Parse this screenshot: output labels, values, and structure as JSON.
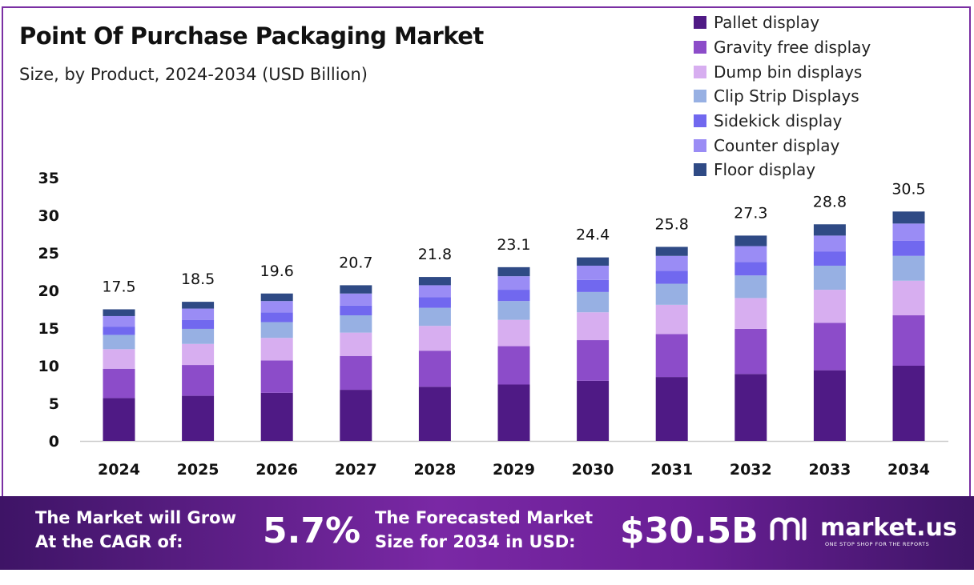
{
  "header": {
    "title": "Point Of Purchase Packaging Market",
    "subtitle": "Size, by Product, 2024-2034 (USD Billion)"
  },
  "chart_data": {
    "type": "bar",
    "stacked": true,
    "title": "Point Of Purchase Packaging Market",
    "subtitle": "Size, by Product, 2024-2034 (USD Billion)",
    "xlabel": "",
    "ylabel": "",
    "ylim": [
      0,
      35
    ],
    "yticks": [
      0,
      5,
      10,
      15,
      20,
      25,
      30,
      35
    ],
    "categories": [
      "2024",
      "2025",
      "2026",
      "2027",
      "2028",
      "2029",
      "2030",
      "2031",
      "2032",
      "2033",
      "2034"
    ],
    "totals": [
      "17.5",
      "18.5",
      "19.6",
      "20.7",
      "21.8",
      "23.1",
      "24.4",
      "25.8",
      "27.3",
      "28.8",
      "30.5"
    ],
    "legend_position": "top-right",
    "series": [
      {
        "name": "Pallet display",
        "color": "#4f1a85",
        "values": [
          5.7,
          6.0,
          6.4,
          6.8,
          7.2,
          7.5,
          8.0,
          8.5,
          8.9,
          9.4,
          10.0
        ]
      },
      {
        "name": "Gravity free display",
        "color": "#8c4cc9",
        "values": [
          3.9,
          4.1,
          4.3,
          4.5,
          4.8,
          5.1,
          5.4,
          5.7,
          6.0,
          6.3,
          6.7
        ]
      },
      {
        "name": "Dump bin displays",
        "color": "#d7aef0",
        "values": [
          2.6,
          2.8,
          3.0,
          3.1,
          3.3,
          3.5,
          3.7,
          3.9,
          4.1,
          4.4,
          4.6
        ]
      },
      {
        "name": "Clip Strip Displays",
        "color": "#97b0e3",
        "values": [
          1.9,
          2.0,
          2.1,
          2.3,
          2.4,
          2.5,
          2.7,
          2.8,
          3.0,
          3.2,
          3.3
        ]
      },
      {
        "name": "Sidekick display",
        "color": "#7168ef",
        "values": [
          1.1,
          1.2,
          1.3,
          1.3,
          1.4,
          1.5,
          1.6,
          1.7,
          1.8,
          1.9,
          2.0
        ]
      },
      {
        "name": "Counter display",
        "color": "#9a8cf5",
        "values": [
          1.4,
          1.5,
          1.5,
          1.6,
          1.6,
          1.8,
          1.9,
          2.0,
          2.1,
          2.1,
          2.3
        ]
      },
      {
        "name": "Floor display",
        "color": "#2f4a85",
        "values": [
          0.9,
          0.9,
          1.0,
          1.1,
          1.1,
          1.2,
          1.1,
          1.2,
          1.4,
          1.5,
          1.6
        ]
      }
    ]
  },
  "banner": {
    "cagr_label_line1": "The Market will Grow",
    "cagr_label_line2": "At the CAGR of:",
    "cagr_value": "5.7%",
    "forecast_label_line1": "The Forecasted Market",
    "forecast_label_line2": "Size for 2034 in USD:",
    "forecast_value": "$30.5B",
    "logo_text": "market.us",
    "logo_tagline": "ONE STOP SHOP FOR THE REPORTS"
  },
  "colors": {
    "border": "#7a2fa3",
    "banner_start": "#3e1466",
    "banner_mid": "#7a28a5"
  }
}
